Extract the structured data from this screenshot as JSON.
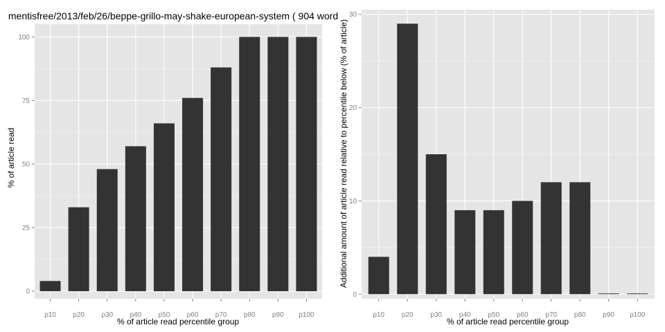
{
  "chart_data": [
    {
      "type": "bar",
      "title": "mentisfree/2013/feb/26/beppe-grillo-may-shake-european-system ( 904 word",
      "xlabel": "% of article read percentile group",
      "ylabel": "% of article read",
      "categories": [
        "p10",
        "p20",
        "p30",
        "p40",
        "p50",
        "p60",
        "p70",
        "p80",
        "p90",
        "p100"
      ],
      "values": [
        4,
        33,
        48,
        57,
        66,
        76,
        88,
        100,
        100,
        100
      ],
      "ylim": [
        -3,
        105
      ],
      "yticks": [
        0,
        25,
        50,
        75,
        100
      ],
      "grid": true,
      "bar_color": "#333333",
      "panel_color": "#e5e5e5"
    },
    {
      "type": "bar",
      "title": "",
      "xlabel": "% of article read percentile group",
      "ylabel": "Additional amount of article read relative to percentile below (% of article)",
      "categories": [
        "p10",
        "p20",
        "p30",
        "p40",
        "p50",
        "p60",
        "p70",
        "p80",
        "p90",
        "p100"
      ],
      "values": [
        4,
        29,
        15,
        9,
        9,
        10,
        12,
        12,
        0,
        0
      ],
      "ylim": [
        -0.5,
        30.5
      ],
      "yticks": [
        0,
        10,
        20,
        30
      ],
      "grid": true,
      "bar_color": "#333333",
      "panel_color": "#e5e5e5"
    }
  ]
}
